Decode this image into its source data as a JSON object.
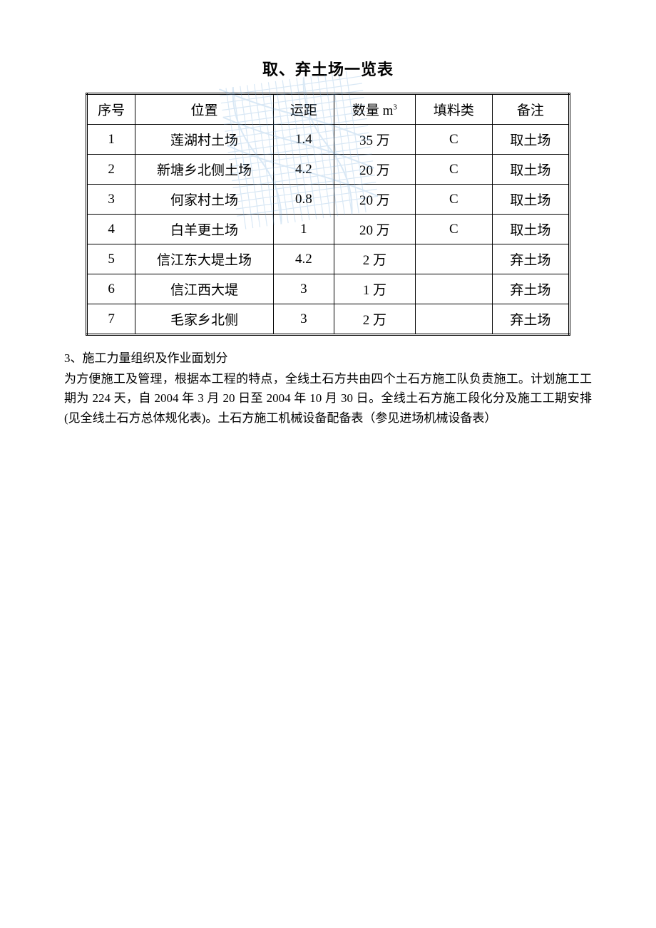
{
  "title": "取、弃土场一览表",
  "table": {
    "columns": [
      "序号",
      "位置",
      "运距",
      "数量 m",
      "填料类",
      "备注"
    ],
    "qty_superscript": "3",
    "rows": [
      [
        "1",
        "莲湖村土场",
        "1.4",
        "35 万",
        "C",
        "取土场"
      ],
      [
        "2",
        "新塘乡北侧土场",
        "4.2",
        "20 万",
        "C",
        "取土场"
      ],
      [
        "3",
        "何家村土场",
        "0.8",
        "20 万",
        "C",
        "取土场"
      ],
      [
        "4",
        "白羊更土场",
        "1",
        "20 万",
        "C",
        "取土场"
      ],
      [
        "5",
        "信江东大堤土场",
        "4.2",
        "2 万",
        "",
        "弃土场"
      ],
      [
        "6",
        "信江西大堤",
        "3",
        "1 万",
        "",
        "弃土场"
      ],
      [
        "7",
        "毛家乡北侧",
        "3",
        "2 万",
        "",
        "弃土场"
      ]
    ],
    "border_color": "#000000",
    "font_size": 19,
    "header_font_size": 19,
    "background_color": "#ffffff"
  },
  "body": {
    "heading": "3、施工力量组织及作业面划分",
    "paragraph": "为方便施工及管理，根据本工程的特点，全线土石方共由四个土石方施工队负责施工。计划施工工期为 224 天，自 2004 年 3 月 20 日至 2004 年 10 月 30 日。全线土石方施工段化分及施工工期安排(见全线土石方总体规化表)。土石方施工机械设备配备表（参见进场机械设备表）",
    "font_size": 17
  },
  "watermark": {
    "stroke_color": "#6aa5d9",
    "opacity": 0.25
  }
}
